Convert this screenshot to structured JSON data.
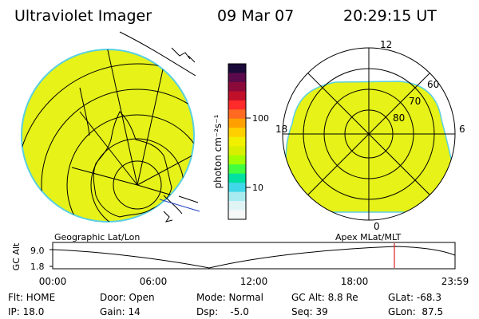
{
  "header": {
    "instrument": "Ultraviolet Imager",
    "date": "09 Mar 07",
    "time": "20:29:15 UT"
  },
  "colorbar": {
    "unit_label": "photon cm⁻²s⁻¹",
    "tick_labels": [
      "100",
      "10"
    ],
    "colors": [
      "#1a0a3a",
      "#5a0a4a",
      "#8b0a3a",
      "#c0102a",
      "#ff2a2a",
      "#ff6a20",
      "#ffa000",
      "#ffd000",
      "#f0f000",
      "#d8f000",
      "#a0ff00",
      "#40ff40",
      "#00e0a0",
      "#40d8e8",
      "#a8ecf0",
      "#e0f4f6",
      "#f6f8f8"
    ]
  },
  "left_map": {
    "caption": "Geographic Lat/Lon",
    "fill_color": "#e6f218"
  },
  "right_map": {
    "caption": "Apex MLat/MLT",
    "fill_color": "#e6f218",
    "mlt_labels": {
      "top": "12",
      "left": "18",
      "right": "6",
      "bottom": "0"
    },
    "lat_labels": [
      "60",
      "70",
      "80"
    ]
  },
  "altitude_plot": {
    "ylabel": "GC Alt",
    "ytick_labels": [
      "9.0",
      "1.8"
    ],
    "xtick_labels": [
      "00:00",
      "06:00",
      "12:00",
      "18:00",
      "23:59"
    ],
    "current_time_color": "#e02020"
  },
  "status": {
    "flt": "Flt: HOME",
    "ip": "IP: 18.0",
    "door": "Door: Open",
    "gain": "Gain: 14",
    "mode": "Mode: Normal",
    "dsp": "Dsp:    -5.0",
    "gc_alt": "GC Alt: 8.8 Re",
    "seq": "Seq: 39",
    "glat": "GLat: -68.3",
    "glon": "GLon:  87.5"
  }
}
